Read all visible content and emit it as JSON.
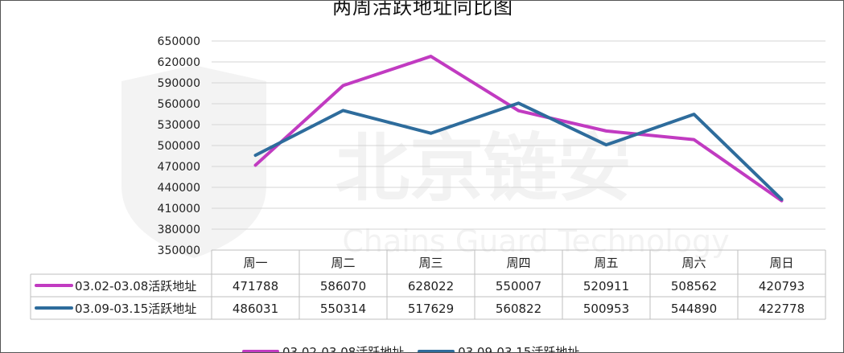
{
  "chart_data": {
    "type": "line",
    "title": "两周活跃地址同比图",
    "categories": [
      "周一",
      "周二",
      "周三",
      "周四",
      "周五",
      "周六",
      "周日"
    ],
    "yticks": [
      350000,
      380000,
      410000,
      440000,
      470000,
      500000,
      530000,
      560000,
      590000,
      620000,
      650000
    ],
    "ylim": [
      350000,
      650000
    ],
    "grid": true,
    "legend_position": "bottom",
    "series": [
      {
        "name": "03.02-03.08活跃地址",
        "color": "#c13bc1",
        "values": [
          471788,
          586070,
          628022,
          550007,
          520911,
          508562,
          420793
        ]
      },
      {
        "name": "03.09-03.15活跃地址",
        "color": "#2e6c9c",
        "values": [
          486031,
          550314,
          517629,
          560822,
          500953,
          544890,
          422778
        ]
      }
    ]
  },
  "watermark": {
    "cn": "北京链安",
    "en": "Chains Guard Technology"
  }
}
